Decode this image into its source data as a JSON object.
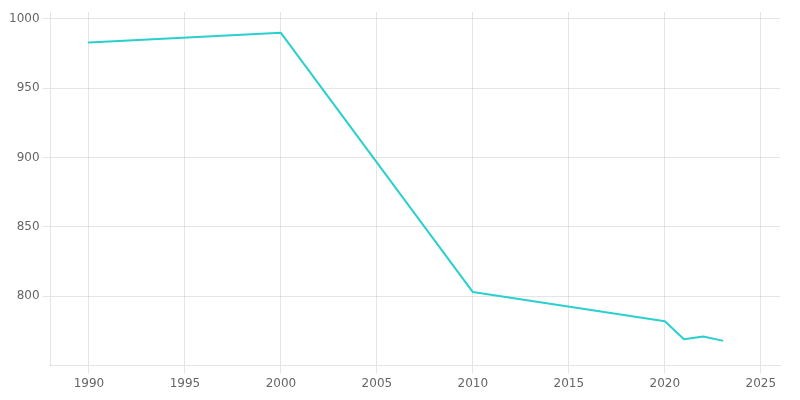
{
  "chart_data": {
    "type": "line",
    "x": [
      1990,
      2000,
      2010,
      2020,
      2021,
      2022,
      2023
    ],
    "values": [
      983,
      990,
      803,
      782,
      769,
      771,
      768
    ],
    "color": "#2acfcf",
    "xlim": [
      1988,
      2026
    ],
    "xticks": [
      1990,
      1995,
      2000,
      2005,
      2010,
      2015,
      2020,
      2025
    ],
    "ylim": [
      750,
      1005
    ],
    "yticks": [
      800,
      850,
      900,
      950,
      1000
    ],
    "grid": true
  }
}
